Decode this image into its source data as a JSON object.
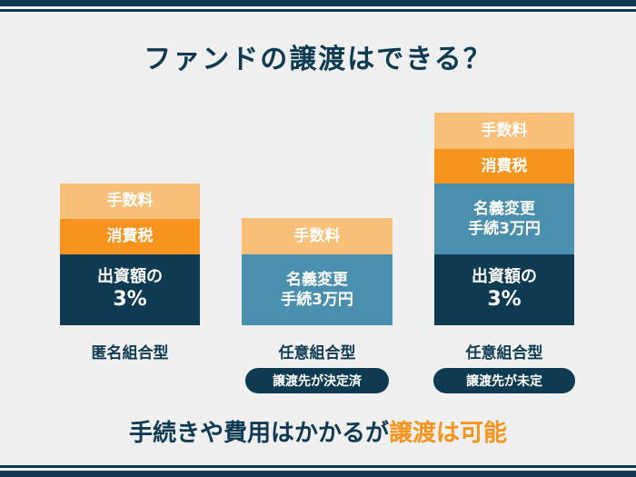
{
  "title": "ファンドの譲渡はできる？",
  "columns": [
    {
      "fee": "手数料",
      "tax": "消費税",
      "investment_line1": "出資額の",
      "investment_line2": "3%",
      "label": "匿名組合型"
    },
    {
      "fee": "手数料",
      "name_change_line1": "名義変更",
      "name_change_line2": "手続3万円",
      "label": "任意組合型",
      "badge": "譲渡先が決定済"
    },
    {
      "fee": "手数料",
      "tax": "消費税",
      "name_change_line1": "名義変更",
      "name_change_line2": "手続3万円",
      "investment_line1": "出資額の",
      "investment_line2": "3%",
      "label": "任意組合型",
      "badge": "譲渡先が未定"
    }
  ],
  "conclusion": {
    "text": "手続きや費用はかかるが",
    "highlight": "譲渡は可能"
  },
  "colors": {
    "navy": "#0e3a52",
    "orange": "#f7941d",
    "light_orange": "#fac07a",
    "steel_blue": "#4a8fad",
    "background": "#f0f0f0"
  }
}
